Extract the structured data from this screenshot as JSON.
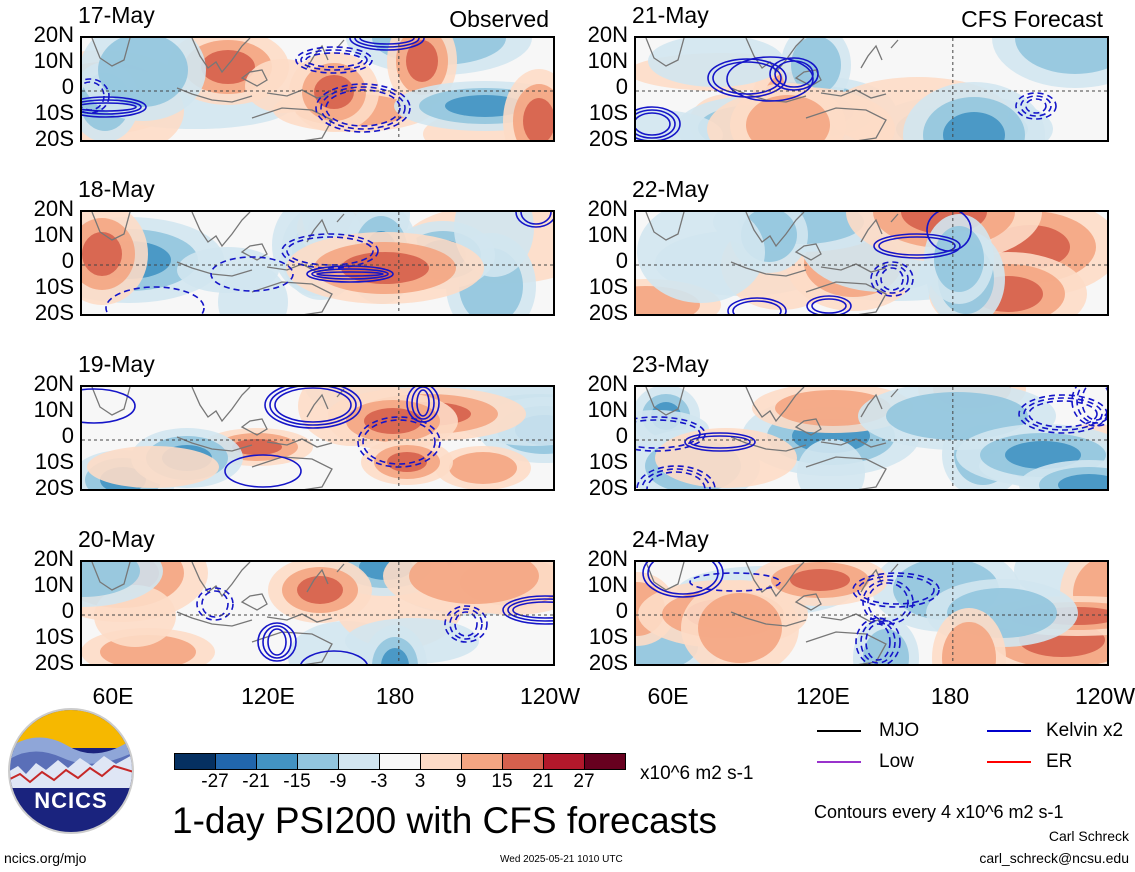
{
  "header": {
    "left_source": "Observed",
    "right_source": "CFS Forecast"
  },
  "panels": [
    {
      "date": "17-May",
      "column": "left",
      "row": 0
    },
    {
      "date": "18-May",
      "column": "left",
      "row": 1
    },
    {
      "date": "19-May",
      "column": "left",
      "row": 2
    },
    {
      "date": "20-May",
      "column": "left",
      "row": 3
    },
    {
      "date": "21-May",
      "column": "right",
      "row": 0
    },
    {
      "date": "22-May",
      "column": "right",
      "row": 1
    },
    {
      "date": "23-May",
      "column": "right",
      "row": 2
    },
    {
      "date": "24-May",
      "column": "right",
      "row": 3
    }
  ],
  "lat_labels": [
    "20N",
    "10N",
    "0",
    "10S",
    "20S"
  ],
  "lon_labels": [
    "60E",
    "120E",
    "180",
    "120W"
  ],
  "colorbar": {
    "labels": [
      "-27",
      "-21",
      "-15",
      "-9",
      "-3",
      "3",
      "9",
      "15",
      "21",
      "27"
    ],
    "colors": [
      "#053061",
      "#2166ac",
      "#4393c3",
      "#92c5de",
      "#d1e5f0",
      "#f7f7f7",
      "#fddbc7",
      "#f4a582",
      "#d6604d",
      "#b2182b",
      "#67001f"
    ],
    "units": "x10^6 m2 s-1"
  },
  "legend": {
    "items": [
      {
        "label": "MJO",
        "color": "#000000"
      },
      {
        "label": "Kelvin x2",
        "color": "#0000cc"
      },
      {
        "label": "Low",
        "color": "#9933cc"
      },
      {
        "label": "ER",
        "color": "#ff0000"
      }
    ],
    "contours_note": "Contours every 4 x10^6 m2 s-1"
  },
  "title": "1-day PSI200 with CFS forecasts",
  "logo": {
    "text": "NCICS"
  },
  "footer": {
    "url": "ncics.org/mjo",
    "timestamp": "Wed 2025-05-21 1010 UTC",
    "author": "Carl Schreck",
    "email": "carl_schreck@ncsu.edu"
  }
}
